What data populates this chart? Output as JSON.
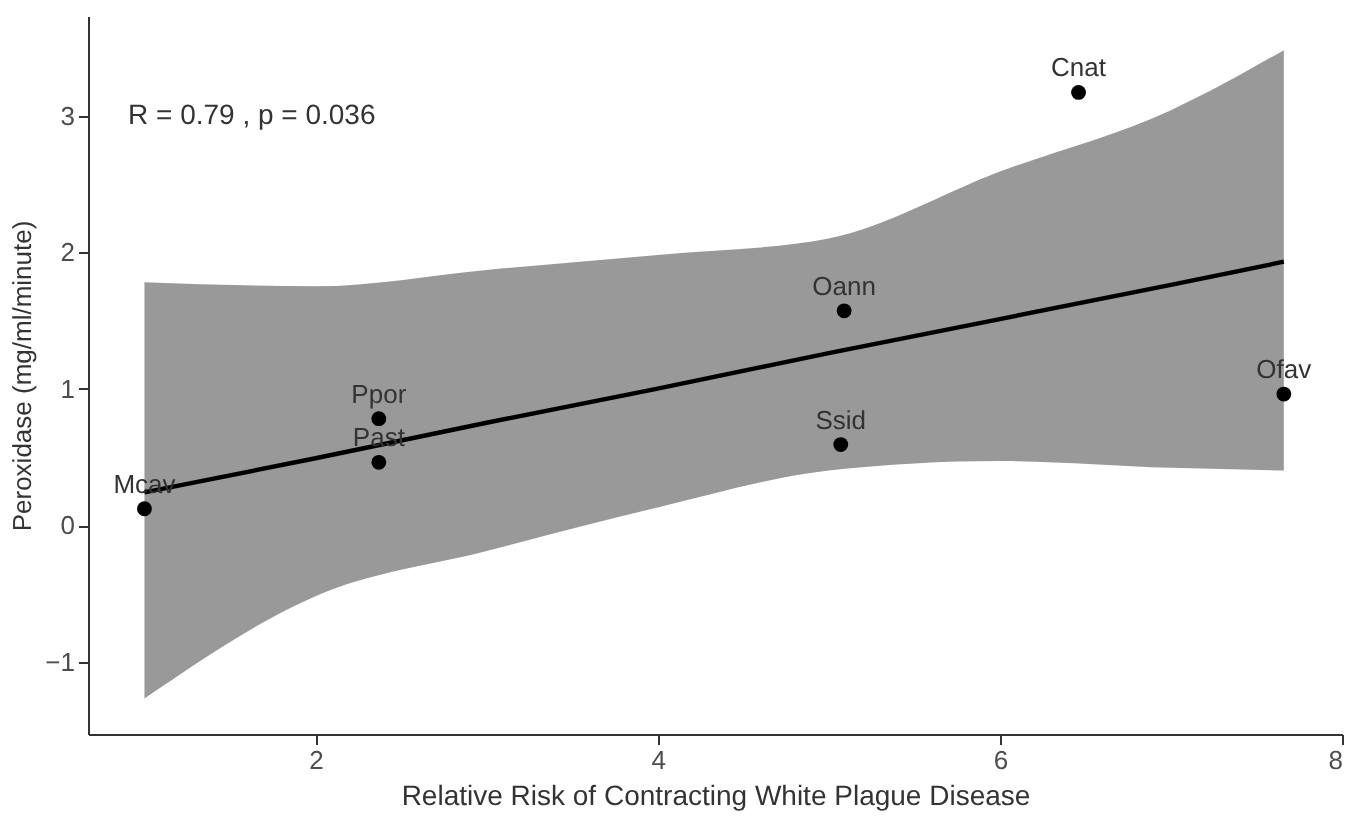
{
  "chart_data": {
    "type": "scatter",
    "xlabel": "Relative Risk of Contracting White Plague Disease",
    "ylabel": "Peroxidase (mg/ml/minute)",
    "xlim": [
      0.67,
      8.0
    ],
    "xticks": [
      2,
      4,
      6,
      8
    ],
    "ylim": [
      -1.53,
      3.73
    ],
    "yticks": [
      -1,
      0,
      1,
      2,
      3
    ],
    "grid": false,
    "series": [
      {
        "type": "line",
        "marker": "none",
        "color": "#000000",
        "x": [
          1.0,
          2.0,
          3.0,
          4.0,
          5.0,
          6.0,
          7.0,
          7.66
        ],
        "values": [
          0.24,
          0.49,
          0.75,
          1.0,
          1.26,
          1.51,
          1.76,
          1.93
        ],
        "lower": [
          -1.27,
          -0.52,
          -0.19,
          0.13,
          0.4,
          0.47,
          0.42,
          0.4
        ],
        "upper": [
          1.78,
          1.75,
          1.87,
          1.98,
          2.1,
          2.59,
          3.04,
          3.48
        ]
      },
      {
        "marker": "circle",
        "color": "#000000",
        "x": [
          1.0,
          2.37,
          2.37,
          5.09,
          5.07,
          6.46,
          7.66
        ],
        "values": [
          0.12,
          0.78,
          0.46,
          1.57,
          0.59,
          3.17,
          0.96
        ]
      }
    ],
    "annotations": [
      {
        "text": "R = 0.79 , p = 0.036"
      },
      {
        "text": "Mcav",
        "x": 1.0,
        "y": 0.12
      },
      {
        "text": "Ppor",
        "x": 2.37,
        "y": 0.78
      },
      {
        "text": "Past",
        "x": 2.37,
        "y": 0.46
      },
      {
        "text": "Oann",
        "x": 5.09,
        "y": 1.57
      },
      {
        "text": "Ssid",
        "x": 5.07,
        "y": 0.59
      },
      {
        "text": "Cnat",
        "x": 6.46,
        "y": 3.17
      },
      {
        "text": "Ofav",
        "x": 7.66,
        "y": 0.96
      }
    ]
  }
}
